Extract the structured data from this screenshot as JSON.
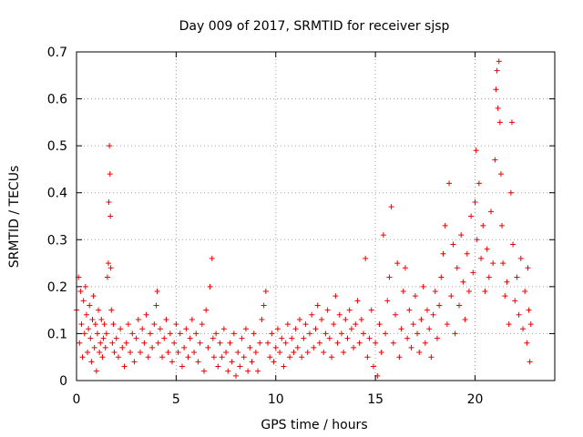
{
  "chart_data": {
    "type": "scatter",
    "title": "Day 009 of 2017, SRMTID for receiver sjsp",
    "xlabel": "GPS time / hours",
    "ylabel": "SRMTID / TECUs",
    "xlim": [
      0,
      24
    ],
    "ylim": [
      0,
      0.7
    ],
    "xticks": [
      0,
      5,
      10,
      15,
      20
    ],
    "xtick_labels": [
      "0",
      "5",
      "10",
      "15",
      "20"
    ],
    "yticks": [
      0,
      0.1,
      0.2,
      0.3,
      0.4,
      0.5,
      0.6,
      0.7
    ],
    "ytick_labels": [
      "0",
      "0.1",
      "0.2",
      "0.3",
      "0.4",
      "0.5",
      "0.6",
      "0.7"
    ],
    "grid": true,
    "marker": "+",
    "series": [
      {
        "name": "SRMTID",
        "color": "#ee0000",
        "points": [
          [
            0.0,
            0.15
          ],
          [
            0.1,
            0.22
          ],
          [
            0.15,
            0.08
          ],
          [
            0.2,
            0.19
          ],
          [
            0.25,
            0.12
          ],
          [
            0.3,
            0.05
          ],
          [
            0.35,
            0.17
          ],
          [
            0.4,
            0.1
          ],
          [
            0.45,
            0.2
          ],
          [
            0.5,
            0.14
          ],
          [
            0.55,
            0.06
          ],
          [
            0.6,
            0.11
          ],
          [
            0.65,
            0.16
          ],
          [
            0.7,
            0.09
          ],
          [
            0.75,
            0.04
          ],
          [
            0.8,
            0.13
          ],
          [
            0.85,
            0.18
          ],
          [
            0.9,
            0.07
          ],
          [
            0.95,
            0.12
          ],
          [
            1.0,
            0.02
          ],
          [
            1.05,
            0.1
          ],
          [
            1.1,
            0.15
          ],
          [
            1.15,
            0.06
          ],
          [
            1.2,
            0.08
          ],
          [
            1.25,
            0.13
          ],
          [
            1.3,
            0.05
          ],
          [
            1.35,
            0.09
          ],
          [
            1.4,
            0.12
          ],
          [
            1.45,
            0.07
          ],
          [
            1.5,
            0.1
          ],
          [
            1.55,
            0.22
          ],
          [
            1.6,
            0.25
          ],
          [
            1.62,
            0.38
          ],
          [
            1.65,
            0.5
          ],
          [
            1.68,
            0.44
          ],
          [
            1.7,
            0.35
          ],
          [
            1.72,
            0.24
          ],
          [
            1.75,
            0.15
          ],
          [
            1.8,
            0.08
          ],
          [
            1.85,
            0.12
          ],
          [
            1.9,
            0.06
          ],
          [
            2.0,
            0.09
          ],
          [
            2.1,
            0.05
          ],
          [
            2.2,
            0.11
          ],
          [
            2.3,
            0.07
          ],
          [
            2.4,
            0.03
          ],
          [
            2.5,
            0.08
          ],
          [
            2.6,
            0.12
          ],
          [
            2.7,
            0.06
          ],
          [
            2.8,
            0.1
          ],
          [
            2.9,
            0.04
          ],
          [
            3.0,
            0.09
          ],
          [
            3.1,
            0.13
          ],
          [
            3.2,
            0.06
          ],
          [
            3.3,
            0.11
          ],
          [
            3.4,
            0.08
          ],
          [
            3.5,
            0.14
          ],
          [
            3.6,
            0.05
          ],
          [
            3.7,
            0.1
          ],
          [
            3.8,
            0.07
          ],
          [
            3.9,
            0.12
          ],
          [
            4.0,
            0.16
          ],
          [
            4.05,
            0.19
          ],
          [
            4.1,
            0.08
          ],
          [
            4.2,
            0.11
          ],
          [
            4.3,
            0.05
          ],
          [
            4.4,
            0.09
          ],
          [
            4.5,
            0.13
          ],
          [
            4.6,
            0.06
          ],
          [
            4.7,
            0.1
          ],
          [
            4.8,
            0.04
          ],
          [
            4.9,
            0.08
          ],
          [
            5.0,
            0.12
          ],
          [
            5.1,
            0.06
          ],
          [
            5.2,
            0.1
          ],
          [
            5.3,
            0.03
          ],
          [
            5.4,
            0.07
          ],
          [
            5.5,
            0.11
          ],
          [
            5.6,
            0.05
          ],
          [
            5.7,
            0.09
          ],
          [
            5.8,
            0.13
          ],
          [
            5.9,
            0.06
          ],
          [
            6.0,
            0.1
          ],
          [
            6.1,
            0.04
          ],
          [
            6.2,
            0.08
          ],
          [
            6.3,
            0.12
          ],
          [
            6.4,
            0.02
          ],
          [
            6.5,
            0.15
          ],
          [
            6.6,
            0.07
          ],
          [
            6.7,
            0.2
          ],
          [
            6.8,
            0.26
          ],
          [
            6.85,
            0.09
          ],
          [
            6.9,
            0.05
          ],
          [
            7.0,
            0.1
          ],
          [
            7.1,
            0.03
          ],
          [
            7.2,
            0.08
          ],
          [
            7.3,
            0.05
          ],
          [
            7.4,
            0.11
          ],
          [
            7.5,
            0.06
          ],
          [
            7.6,
            0.02
          ],
          [
            7.7,
            0.08
          ],
          [
            7.8,
            0.04
          ],
          [
            7.9,
            0.1
          ],
          [
            8.0,
            0.01
          ],
          [
            8.1,
            0.06
          ],
          [
            8.2,
            0.03
          ],
          [
            8.3,
            0.09
          ],
          [
            8.4,
            0.05
          ],
          [
            8.5,
            0.11
          ],
          [
            8.6,
            0.02
          ],
          [
            8.7,
            0.07
          ],
          [
            8.8,
            0.04
          ],
          [
            8.9,
            0.1
          ],
          [
            9.0,
            0.06
          ],
          [
            9.1,
            0.02
          ],
          [
            9.2,
            0.08
          ],
          [
            9.3,
            0.13
          ],
          [
            9.4,
            0.16
          ],
          [
            9.5,
            0.19
          ],
          [
            9.6,
            0.08
          ],
          [
            9.7,
            0.05
          ],
          [
            9.8,
            0.1
          ],
          [
            9.9,
            0.04
          ],
          [
            10.0,
            0.07
          ],
          [
            10.1,
            0.11
          ],
          [
            10.2,
            0.06
          ],
          [
            10.3,
            0.09
          ],
          [
            10.4,
            0.03
          ],
          [
            10.5,
            0.08
          ],
          [
            10.6,
            0.12
          ],
          [
            10.7,
            0.05
          ],
          [
            10.8,
            0.09
          ],
          [
            10.9,
            0.06
          ],
          [
            11.0,
            0.11
          ],
          [
            11.1,
            0.07
          ],
          [
            11.2,
            0.13
          ],
          [
            11.3,
            0.05
          ],
          [
            11.4,
            0.09
          ],
          [
            11.5,
            0.12
          ],
          [
            11.6,
            0.06
          ],
          [
            11.7,
            0.1
          ],
          [
            11.8,
            0.14
          ],
          [
            11.9,
            0.07
          ],
          [
            12.0,
            0.11
          ],
          [
            12.1,
            0.16
          ],
          [
            12.2,
            0.08
          ],
          [
            12.3,
            0.13
          ],
          [
            12.4,
            0.06
          ],
          [
            12.5,
            0.1
          ],
          [
            12.6,
            0.15
          ],
          [
            12.7,
            0.09
          ],
          [
            12.8,
            0.05
          ],
          [
            12.9,
            0.12
          ],
          [
            13.0,
            0.18
          ],
          [
            13.1,
            0.08
          ],
          [
            13.2,
            0.14
          ],
          [
            13.3,
            0.1
          ],
          [
            13.4,
            0.06
          ],
          [
            13.5,
            0.13
          ],
          [
            13.6,
            0.09
          ],
          [
            13.7,
            0.15
          ],
          [
            13.8,
            0.11
          ],
          [
            13.9,
            0.07
          ],
          [
            14.0,
            0.12
          ],
          [
            14.1,
            0.17
          ],
          [
            14.2,
            0.08
          ],
          [
            14.3,
            0.13
          ],
          [
            14.4,
            0.1
          ],
          [
            14.5,
            0.26
          ],
          [
            14.6,
            0.05
          ],
          [
            14.7,
            0.09
          ],
          [
            14.8,
            0.15
          ],
          [
            14.9,
            0.03
          ],
          [
            15.0,
            0.08
          ],
          [
            15.1,
            0.01
          ],
          [
            15.2,
            0.12
          ],
          [
            15.3,
            0.06
          ],
          [
            15.4,
            0.31
          ],
          [
            15.5,
            0.1
          ],
          [
            15.6,
            0.17
          ],
          [
            15.7,
            0.22
          ],
          [
            15.8,
            0.37
          ],
          [
            15.9,
            0.08
          ],
          [
            16.0,
            0.14
          ],
          [
            16.1,
            0.25
          ],
          [
            16.2,
            0.05
          ],
          [
            16.3,
            0.11
          ],
          [
            16.4,
            0.19
          ],
          [
            16.5,
            0.24
          ],
          [
            16.6,
            0.09
          ],
          [
            16.7,
            0.15
          ],
          [
            16.8,
            0.07
          ],
          [
            16.9,
            0.12
          ],
          [
            17.0,
            0.18
          ],
          [
            17.1,
            0.1
          ],
          [
            17.2,
            0.06
          ],
          [
            17.3,
            0.13
          ],
          [
            17.4,
            0.2
          ],
          [
            17.5,
            0.08
          ],
          [
            17.6,
            0.15
          ],
          [
            17.7,
            0.11
          ],
          [
            17.8,
            0.05
          ],
          [
            17.9,
            0.14
          ],
          [
            18.0,
            0.19
          ],
          [
            18.1,
            0.09
          ],
          [
            18.2,
            0.16
          ],
          [
            18.3,
            0.22
          ],
          [
            18.4,
            0.27
          ],
          [
            18.5,
            0.33
          ],
          [
            18.6,
            0.12
          ],
          [
            18.7,
            0.42
          ],
          [
            18.8,
            0.18
          ],
          [
            18.9,
            0.29
          ],
          [
            19.0,
            0.1
          ],
          [
            19.1,
            0.24
          ],
          [
            19.2,
            0.16
          ],
          [
            19.3,
            0.31
          ],
          [
            19.4,
            0.21
          ],
          [
            19.5,
            0.13
          ],
          [
            19.6,
            0.27
          ],
          [
            19.7,
            0.19
          ],
          [
            19.8,
            0.35
          ],
          [
            19.9,
            0.23
          ],
          [
            20.0,
            0.38
          ],
          [
            20.05,
            0.49
          ],
          [
            20.1,
            0.3
          ],
          [
            20.2,
            0.42
          ],
          [
            20.3,
            0.26
          ],
          [
            20.4,
            0.33
          ],
          [
            20.5,
            0.19
          ],
          [
            20.6,
            0.28
          ],
          [
            20.7,
            0.22
          ],
          [
            20.8,
            0.36
          ],
          [
            20.9,
            0.25
          ],
          [
            21.0,
            0.47
          ],
          [
            21.05,
            0.62
          ],
          [
            21.1,
            0.66
          ],
          [
            21.15,
            0.58
          ],
          [
            21.2,
            0.68
          ],
          [
            21.25,
            0.55
          ],
          [
            21.3,
            0.44
          ],
          [
            21.35,
            0.33
          ],
          [
            21.4,
            0.25
          ],
          [
            21.5,
            0.18
          ],
          [
            21.6,
            0.21
          ],
          [
            21.7,
            0.12
          ],
          [
            21.8,
            0.4
          ],
          [
            21.85,
            0.55
          ],
          [
            21.9,
            0.29
          ],
          [
            22.0,
            0.17
          ],
          [
            22.1,
            0.22
          ],
          [
            22.2,
            0.14
          ],
          [
            22.3,
            0.26
          ],
          [
            22.4,
            0.11
          ],
          [
            22.5,
            0.19
          ],
          [
            22.6,
            0.08
          ],
          [
            22.65,
            0.24
          ],
          [
            22.7,
            0.15
          ],
          [
            22.75,
            0.04
          ],
          [
            22.8,
            0.12
          ]
        ]
      }
    ]
  }
}
